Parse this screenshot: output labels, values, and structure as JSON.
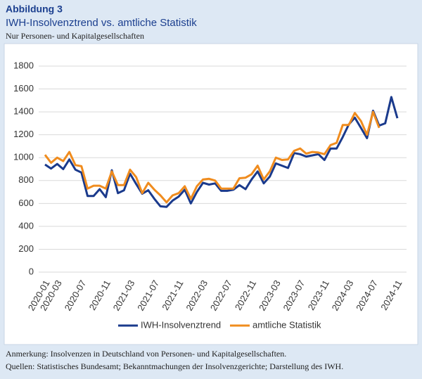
{
  "chart_data": {
    "type": "line",
    "title": "Abbildung 3",
    "subtitle": "IWH-Insolvenztrend vs. amtliche Statistik",
    "description": "Nur Personen- und Kapitalgesellschaften",
    "notes": [
      "Anmerkung: Insolvenzen in Deutschland von Personen- und Kapitalgesellschaften.",
      "Quellen: Statistisches Bundesamt; Bekanntmachungen der Insolvenzgerichte; Darstellung des IWH."
    ],
    "categories": [
      "2020-01",
      null,
      "2020-03",
      null,
      null,
      null,
      "2020-07",
      null,
      null,
      null,
      "2020-11",
      null,
      null,
      null,
      "2021-03",
      null,
      null,
      null,
      "2021-07",
      null,
      null,
      null,
      "2021-11",
      null,
      null,
      null,
      "2022-03",
      null,
      null,
      null,
      "2022-07",
      null,
      null,
      null,
      "2022-11",
      null,
      null,
      null,
      "2023-03",
      null,
      null,
      null,
      "2023-07",
      null,
      null,
      null,
      "2023-11",
      null,
      null,
      null,
      "2024-03",
      null,
      null,
      null,
      "2024-07",
      null,
      null,
      null,
      "2024-11"
    ],
    "series": [
      {
        "name": "IWH-Insolvenztrend",
        "color": "#1a3a8c",
        "values": [
          940,
          905,
          945,
          900,
          985,
          895,
          870,
          665,
          665,
          725,
          655,
          890,
          690,
          715,
          860,
          770,
          685,
          715,
          640,
          575,
          570,
          625,
          660,
          720,
          600,
          700,
          780,
          765,
          775,
          710,
          710,
          720,
          760,
          725,
          810,
          880,
          775,
          835,
          950,
          930,
          910,
          1040,
          1030,
          1010,
          1020,
          1030,
          980,
          1080,
          1080,
          1180,
          1290,
          1350,
          1260,
          1170,
          1410,
          1280,
          1300,
          1530,
          1345
        ]
      },
      {
        "name": "amtliche Statistik",
        "color": "#f08c1e",
        "values": [
          1025,
          955,
          1000,
          970,
          1050,
          935,
          925,
          730,
          755,
          755,
          730,
          880,
          760,
          760,
          895,
          830,
          690,
          780,
          720,
          670,
          610,
          670,
          690,
          750,
          640,
          750,
          810,
          815,
          800,
          730,
          730,
          730,
          820,
          825,
          855,
          930,
          810,
          880,
          1000,
          980,
          985,
          1060,
          1080,
          1035,
          1050,
          1045,
          1030,
          1110,
          1130,
          1285,
          1285,
          1390,
          1320,
          1200,
          1400,
          1260,
          null,
          null,
          null
        ]
      }
    ],
    "ylim": [
      0,
      1800
    ],
    "yticks": [
      0,
      200,
      400,
      600,
      800,
      1000,
      1200,
      1400,
      1600,
      1800
    ],
    "grid": true
  }
}
